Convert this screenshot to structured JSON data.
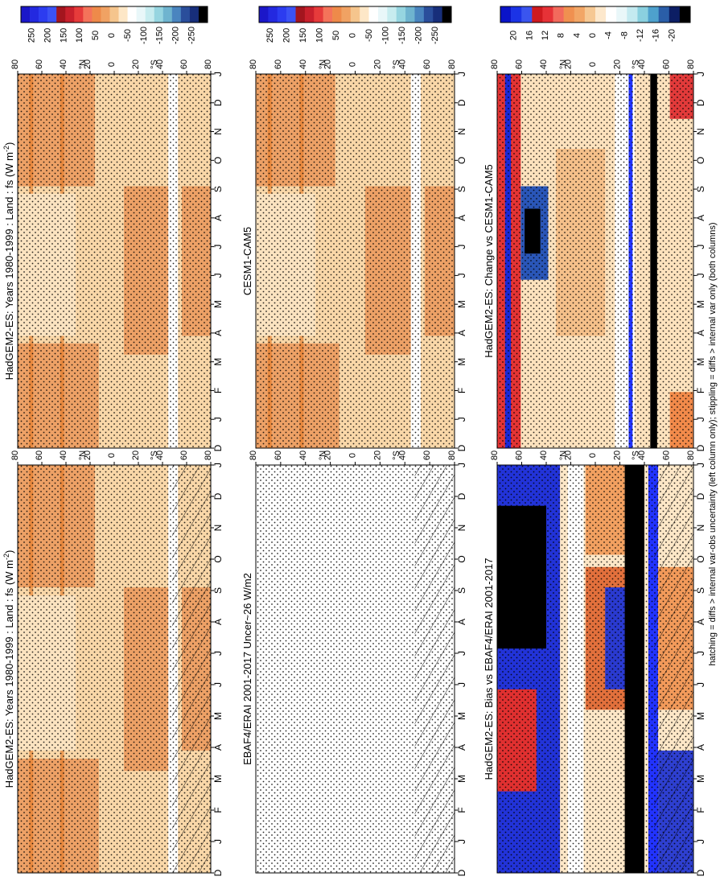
{
  "footnote": "hatching = diffs > internal var-obs uncertainty (left column only); stippling = diffs > internal var only (both columns)",
  "months": [
    "J",
    "F",
    "M",
    "A",
    "M",
    "J",
    "J",
    "A",
    "S",
    "O",
    "N",
    "D",
    "J"
  ],
  "first_month": "D",
  "lat_ticks": [
    "80",
    "60",
    "40",
    "20",
    "0",
    "20",
    "40",
    "60",
    "80"
  ],
  "hemisphere_labels": {
    "north": "°N",
    "south": "°S"
  },
  "colors": {
    "seq_big": [
      "#1b17c9",
      "#2329e0",
      "#2c3cf0",
      "#3b52f5",
      "#a3151e",
      "#c8202c",
      "#e63b3b",
      "#f4735a",
      "#ee8a4a",
      "#f0a263",
      "#f5c58d",
      "#fde7c7",
      "#ffffff",
      "#e9f7f9",
      "#c7ecef",
      "#96d5e0",
      "#6fb4cf",
      "#4a85bf",
      "#2a4e9b",
      "#172e7a",
      "#000000"
    ],
    "seq_small": [
      "#0a14c8",
      "#1b33e6",
      "#3a55ef",
      "#cf1a1f",
      "#e63237",
      "#f26a5c",
      "#f09050",
      "#f2a666",
      "#f6c893",
      "#fde8cc",
      "#ffffff",
      "#e9f7f9",
      "#c4eaf0",
      "#8ad0df",
      "#4ea1cd",
      "#2a5ea8",
      "#0c1e64",
      "#000000"
    ]
  },
  "chart_data": [
    {
      "type": "heatmap",
      "title": "HadGEM2-ES: Years 1980-1999 : Land : fs (W m",
      "title_sup": "-2",
      "title_tail": ")",
      "x": [
        "D",
        "J",
        "F",
        "M",
        "A",
        "M",
        "J",
        "J",
        "A",
        "S",
        "O",
        "N",
        "D",
        "J"
      ],
      "y": [
        80,
        60,
        40,
        20,
        0,
        -20,
        -40,
        -60,
        -80
      ],
      "colorbar_ticks": [
        "250",
        "200",
        "150",
        "100",
        "50",
        "0",
        "-50",
        "-100",
        "-150",
        "-200",
        "-250"
      ],
      "hatching": true,
      "stippling": true
    },
    {
      "type": "heatmap",
      "title": "HadGEM2-ES: Years 1980-1999 : Land : fs (W m",
      "title_sup": "-2",
      "title_tail": ")",
      "x": [
        "D",
        "J",
        "F",
        "M",
        "A",
        "M",
        "J",
        "J",
        "A",
        "S",
        "O",
        "N",
        "D",
        "J"
      ],
      "y": [
        80,
        60,
        40,
        20,
        0,
        -20,
        -40,
        -60,
        -80
      ],
      "colorbar_ticks": [
        "250",
        "200",
        "150",
        "100",
        "50",
        "0",
        "-50",
        "-100",
        "-150",
        "-200",
        "-250"
      ],
      "hatching": false,
      "stippling": true
    },
    {
      "type": "heatmap",
      "title": "EBAF4/ERAI 2001-2017 Uncer~26 W/m2",
      "title_sup": "",
      "title_tail": "",
      "x": [
        "D",
        "J",
        "F",
        "M",
        "A",
        "M",
        "J",
        "J",
        "A",
        "S",
        "O",
        "N",
        "D",
        "J"
      ],
      "y": [
        80,
        60,
        40,
        20,
        0,
        -20,
        -40,
        -60,
        -80
      ],
      "colorbar_ticks": [
        "250",
        "200",
        "150",
        "100",
        "50",
        "0",
        "-50",
        "-100",
        "-150",
        "-200",
        "-250"
      ],
      "hatching": true,
      "stippling": true
    },
    {
      "type": "heatmap",
      "title": "CESM1-CAM5",
      "title_sup": "",
      "title_tail": "",
      "x": [
        "D",
        "J",
        "F",
        "M",
        "A",
        "M",
        "J",
        "J",
        "A",
        "S",
        "O",
        "N",
        "D",
        "J"
      ],
      "y": [
        80,
        60,
        40,
        20,
        0,
        -20,
        -40,
        -60,
        -80
      ],
      "colorbar_ticks": [
        "250",
        "200",
        "150",
        "100",
        "50",
        "0",
        "-50",
        "-100",
        "-150",
        "-200",
        "-250"
      ],
      "hatching": false,
      "stippling": true
    },
    {
      "type": "heatmap",
      "title": "HadGEM2-ES: Bias vs EBAF4/ERAI 2001-2017",
      "title_sup": "",
      "title_tail": "",
      "x": [
        "D",
        "J",
        "F",
        "M",
        "A",
        "M",
        "J",
        "J",
        "A",
        "S",
        "O",
        "N",
        "D",
        "J"
      ],
      "y": [
        80,
        60,
        40,
        20,
        0,
        -20,
        -40,
        -60,
        -80
      ],
      "colorbar_ticks": [
        "20",
        "16",
        "12",
        "8",
        "4",
        "0",
        "-4",
        "-8",
        "-12",
        "-16",
        "-20"
      ],
      "hatching": true,
      "stippling": true
    },
    {
      "type": "heatmap",
      "title": "HadGEM2-ES: Change vs CESM1-CAM5",
      "title_sup": "",
      "title_tail": "",
      "x": [
        "D",
        "J",
        "F",
        "M",
        "A",
        "M",
        "J",
        "J",
        "A",
        "S",
        "O",
        "N",
        "D",
        "J"
      ],
      "y": [
        80,
        60,
        40,
        20,
        0,
        -20,
        -40,
        -60,
        -80
      ],
      "colorbar_ticks": [
        "20",
        "16",
        "12",
        "8",
        "4",
        "0",
        "-4",
        "-8",
        "-12",
        "-16",
        "-20"
      ],
      "hatching": false,
      "stippling": true
    }
  ]
}
